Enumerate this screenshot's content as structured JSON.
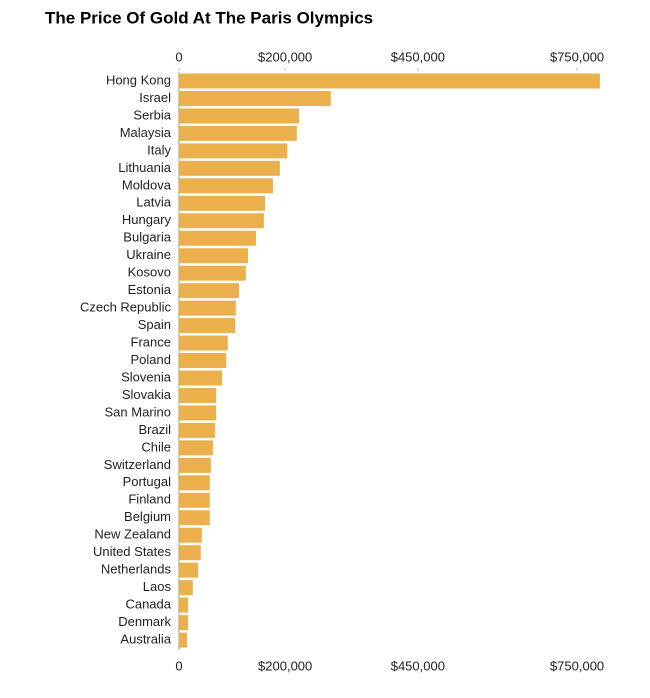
{
  "chart_data": {
    "type": "barh",
    "title": "The Price Of Gold At The Paris Olympics",
    "categories": [
      "Hong Kong",
      "Israel",
      "Serbia",
      "Malaysia",
      "Italy",
      "Lithuania",
      "Moldova",
      "Latvia",
      "Hungary",
      "Bulgaria",
      "Ukraine",
      "Kosovo",
      "Estonia",
      "Czech Republic",
      "Spain",
      "France",
      "Poland",
      "Slovenia",
      "Slovakia",
      "San Marino",
      "Brazil",
      "Chile",
      "Switzerland",
      "Portugal",
      "Finland",
      "Belgium",
      "New Zealand",
      "United States",
      "Netherlands",
      "Laos",
      "Canada",
      "Denmark",
      "Australia"
    ],
    "values": [
      793000,
      286000,
      226000,
      222000,
      204000,
      190000,
      177000,
      162000,
      160000,
      145000,
      130000,
      126000,
      113000,
      107000,
      106000,
      92000,
      89000,
      81000,
      70000,
      70000,
      68000,
      64000,
      60000,
      58000,
      58000,
      58000,
      43000,
      41000,
      36000,
      26000,
      17000,
      17000,
      15000
    ],
    "color": "#ebb04b",
    "xlim": [
      0,
      800000
    ],
    "xticks": [
      0,
      {
        "value": 200000,
        "label": "$200,000"
      },
      {
        "value": 450000,
        "label": "$450,000"
      },
      {
        "value": 750000,
        "label": "$750,000"
      }
    ]
  }
}
